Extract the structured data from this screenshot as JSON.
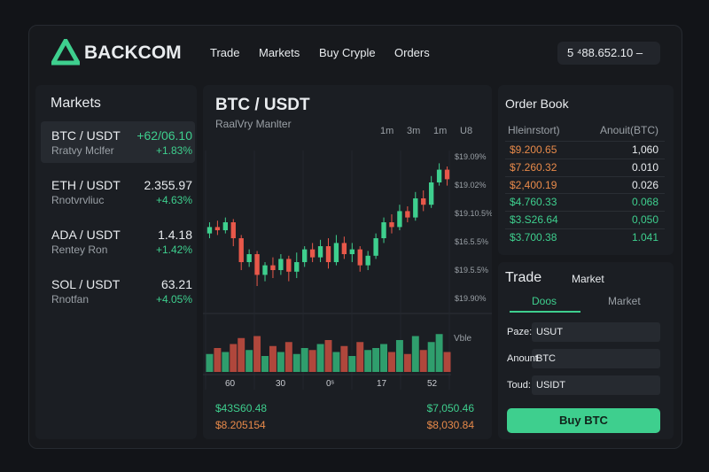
{
  "header": {
    "brand": "BACKCOM",
    "nav": [
      "Trade",
      "Markets",
      "Buy Cryple",
      "Orders"
    ],
    "balance": "5 ⁴88.652.10 –"
  },
  "markets": {
    "title": "Markets",
    "items": [
      {
        "pair": "BTC / USDT",
        "price": "+62/06.10",
        "sub": "Rratvy Mclfer",
        "change": "+1.83%"
      },
      {
        "pair": "ETH / USDT",
        "price": "2.355.97",
        "sub": "Rnotvrvliuc",
        "change": "+4.63%"
      },
      {
        "pair": "ADA / USDT",
        "price": "1.4.18",
        "sub": "Rentey Ron",
        "change": "+1.42%"
      },
      {
        "pair": "SOL / USDT",
        "price": "63.21",
        "sub": "Rnotfan",
        "change": "+4.05%"
      }
    ]
  },
  "chart": {
    "title": "BTC / USDT",
    "subtitle": "RaalVry Manlter",
    "timeframes": [
      "1m",
      "3m",
      "1m",
      "U8"
    ],
    "price_labels": [
      "$19.09%",
      "$19.02%",
      "$19.10.5%",
      "$16.5.5%",
      "$19.5.5%",
      "$19.90%"
    ],
    "volume_label": "Vble",
    "x_labels": [
      "60",
      "30",
      "0ˢ",
      "17",
      "52"
    ],
    "ylim": [
      0,
      100
    ],
    "volume_ylim": [
      0,
      100
    ],
    "candles": [
      {
        "open": 48,
        "high": 55,
        "low": 45,
        "close": 52
      },
      {
        "open": 52,
        "high": 56,
        "low": 47,
        "close": 50
      },
      {
        "open": 50,
        "high": 58,
        "low": 48,
        "close": 55
      },
      {
        "open": 55,
        "high": 57,
        "low": 40,
        "close": 45
      },
      {
        "open": 45,
        "high": 47,
        "low": 25,
        "close": 30
      },
      {
        "open": 30,
        "high": 38,
        "low": 27,
        "close": 35
      },
      {
        "open": 35,
        "high": 37,
        "low": 15,
        "close": 22
      },
      {
        "open": 22,
        "high": 30,
        "low": 18,
        "close": 28
      },
      {
        "open": 28,
        "high": 33,
        "low": 20,
        "close": 25
      },
      {
        "open": 25,
        "high": 35,
        "low": 22,
        "close": 32
      },
      {
        "open": 32,
        "high": 34,
        "low": 18,
        "close": 24
      },
      {
        "open": 24,
        "high": 36,
        "low": 20,
        "close": 30
      },
      {
        "open": 30,
        "high": 40,
        "low": 27,
        "close": 38
      },
      {
        "open": 38,
        "high": 42,
        "low": 30,
        "close": 33
      },
      {
        "open": 33,
        "high": 44,
        "low": 30,
        "close": 40
      },
      {
        "open": 40,
        "high": 45,
        "low": 26,
        "close": 30
      },
      {
        "open": 30,
        "high": 47,
        "low": 28,
        "close": 42
      },
      {
        "open": 42,
        "high": 46,
        "low": 32,
        "close": 35
      },
      {
        "open": 35,
        "high": 42,
        "low": 30,
        "close": 38
      },
      {
        "open": 38,
        "high": 40,
        "low": 24,
        "close": 28
      },
      {
        "open": 28,
        "high": 37,
        "low": 25,
        "close": 34
      },
      {
        "open": 34,
        "high": 48,
        "low": 32,
        "close": 45
      },
      {
        "open": 45,
        "high": 58,
        "low": 42,
        "close": 55
      },
      {
        "open": 55,
        "high": 60,
        "low": 48,
        "close": 52
      },
      {
        "open": 52,
        "high": 66,
        "low": 50,
        "close": 62
      },
      {
        "open": 62,
        "high": 65,
        "low": 55,
        "close": 58
      },
      {
        "open": 58,
        "high": 74,
        "low": 56,
        "close": 70
      },
      {
        "open": 70,
        "high": 75,
        "low": 62,
        "close": 66
      },
      {
        "open": 66,
        "high": 84,
        "low": 64,
        "close": 80
      },
      {
        "open": 80,
        "high": 92,
        "low": 78,
        "close": 88
      },
      {
        "open": 88,
        "high": 90,
        "low": 78,
        "close": 82
      }
    ],
    "volumes": [
      45,
      60,
      50,
      70,
      85,
      55,
      90,
      40,
      65,
      50,
      75,
      45,
      60,
      55,
      70,
      80,
      50,
      65,
      40,
      75,
      55,
      60,
      70,
      50,
      80,
      45,
      90,
      55,
      75,
      95,
      50
    ],
    "footer": [
      "$43S60.48",
      "$7,050.46",
      "$8.205154",
      "$8,030.84"
    ]
  },
  "order_book": {
    "title": "Order Book",
    "headers": [
      "Hleinrstort)",
      "Anouit(BTC)"
    ],
    "rows": [
      [
        "$9.200.65",
        "1,060"
      ],
      [
        "$7.260.32",
        "0.010"
      ],
      [
        "$2,400.19",
        "0.026"
      ],
      [
        "$4.760.33",
        "0.068"
      ],
      [
        "$3.S26.64",
        "0,050"
      ],
      [
        "$3.700.38",
        "1.041"
      ]
    ]
  },
  "trade": {
    "title": "Trade",
    "mode": "Market",
    "tabs": [
      "Doos",
      "Market"
    ],
    "fields": [
      [
        "Paze:",
        "USUT"
      ],
      [
        "Anount",
        "BTC"
      ],
      [
        "Toud:",
        "USIDT"
      ]
    ],
    "button": "Buy BTC"
  }
}
